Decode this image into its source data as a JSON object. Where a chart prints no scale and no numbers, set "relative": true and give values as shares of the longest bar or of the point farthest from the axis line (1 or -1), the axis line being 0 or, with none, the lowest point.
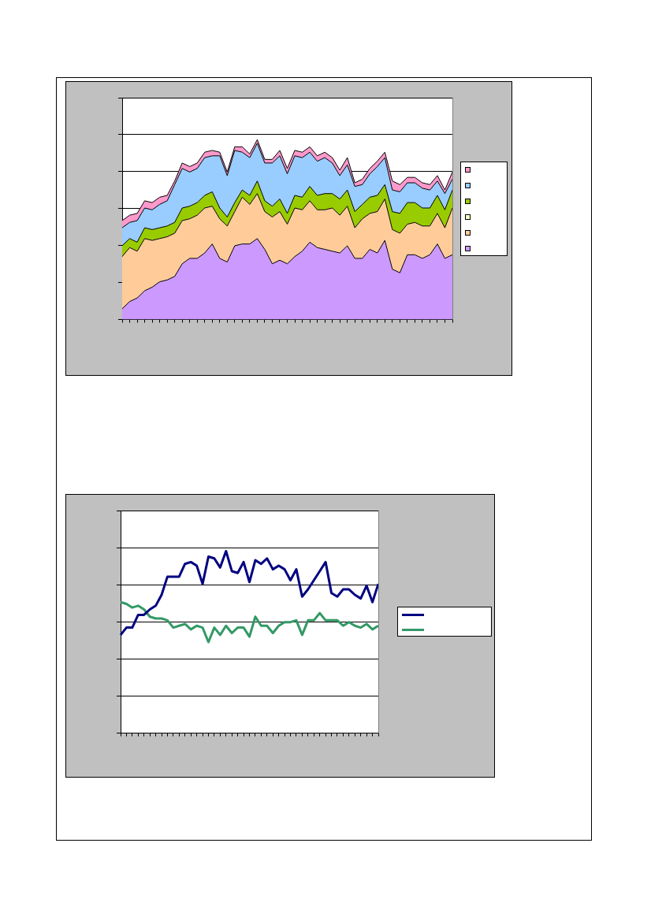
{
  "chart_data": [
    {
      "type": "area",
      "relative": true,
      "stacked": true,
      "grid": "y",
      "categories": [
        null,
        null,
        null,
        null,
        null,
        null,
        null,
        null,
        null,
        null,
        null,
        null,
        null,
        null,
        null,
        null,
        null,
        null,
        null,
        null,
        null,
        null,
        null,
        null,
        null,
        null,
        null,
        null,
        null,
        null,
        null,
        null,
        null,
        null,
        null,
        null,
        null,
        null,
        null,
        null,
        null,
        null,
        null,
        null,
        null
      ],
      "series": [
        {
          "color": "#cc99ff",
          "values": [
            0.06,
            0.1,
            0.12,
            0.16,
            0.18,
            0.21,
            0.22,
            0.24,
            0.31,
            0.34,
            0.34,
            0.37,
            0.42,
            0.34,
            0.32,
            0.41,
            0.42,
            0.42,
            0.45,
            0.39,
            0.31,
            0.33,
            0.31,
            0.35,
            0.38,
            0.43,
            0.4,
            0.39,
            0.38,
            0.37,
            0.41,
            0.34,
            0.34,
            0.39,
            0.37,
            0.44,
            0.28,
            0.26,
            0.36,
            0.36,
            0.34,
            0.36,
            0.42,
            0.34,
            0.36
          ]
        },
        {
          "color": "#ffcc99",
          "values": [
            0.29,
            0.3,
            0.26,
            0.29,
            0.26,
            0.24,
            0.24,
            0.24,
            0.24,
            0.22,
            0.24,
            0.25,
            0.21,
            0.22,
            0.2,
            0.19,
            0.26,
            0.22,
            0.25,
            0.21,
            0.26,
            0.27,
            0.22,
            0.27,
            0.23,
            0.23,
            0.21,
            0.22,
            0.24,
            0.21,
            0.22,
            0.17,
            0.22,
            0.2,
            0.23,
            0.23,
            0.22,
            0.22,
            0.17,
            0.18,
            0.18,
            0.16,
            0.17,
            0.17,
            0.26
          ]
        },
        {
          "color": "#ffffcc",
          "values": [
            null,
            null,
            null,
            null,
            null,
            null,
            null,
            null,
            null,
            null,
            null,
            null,
            null,
            null,
            null,
            null,
            null,
            null,
            null,
            null,
            null,
            null,
            null,
            null,
            null,
            null,
            null,
            null,
            null,
            null,
            null,
            null,
            null,
            null,
            null,
            null,
            null,
            null,
            null,
            null,
            null,
            null,
            null,
            null,
            null
          ]
        },
        {
          "color": "#99cc00",
          "values": [
            0.06,
            0.05,
            0.05,
            0.06,
            0.06,
            0.06,
            0.06,
            0.06,
            0.07,
            0.07,
            0.07,
            0.07,
            0.08,
            0.06,
            0.05,
            0.05,
            0.04,
            0.05,
            0.07,
            0.06,
            0.06,
            0.07,
            0.06,
            0.07,
            0.07,
            0.08,
            0.08,
            0.09,
            0.08,
            0.09,
            0.09,
            0.09,
            0.08,
            0.09,
            0.09,
            0.08,
            0.1,
            0.11,
            0.12,
            0.11,
            0.1,
            0.1,
            0.1,
            0.1,
            0.1
          ]
        },
        {
          "color": "#99ccff",
          "values": [
            0.1,
            0.09,
            0.12,
            0.11,
            0.11,
            0.13,
            0.14,
            0.21,
            0.22,
            0.19,
            0.19,
            0.21,
            0.2,
            0.29,
            0.23,
            0.29,
            0.21,
            0.21,
            0.21,
            0.21,
            0.24,
            0.24,
            0.22,
            0.22,
            0.22,
            0.19,
            0.19,
            0.2,
            0.17,
            0.13,
            0.14,
            0.14,
            0.11,
            0.13,
            0.16,
            0.15,
            0.12,
            0.12,
            0.11,
            0.11,
            0.11,
            0.1,
            0.08,
            0.09,
            0.06
          ]
        },
        {
          "color": "#ff99cc",
          "values": [
            0.04,
            0.04,
            0.04,
            0.04,
            0.04,
            0.04,
            0.03,
            0.02,
            0.03,
            0.03,
            0.03,
            0.03,
            0.03,
            0.02,
            0.02,
            0.02,
            0.03,
            0.02,
            0.02,
            0.02,
            0.02,
            0.03,
            0.03,
            0.03,
            0.03,
            0.03,
            0.03,
            0.03,
            0.03,
            0.03,
            0.04,
            0.02,
            0.03,
            0.03,
            0.03,
            0.03,
            0.05,
            0.04,
            0.03,
            0.03,
            0.03,
            0.03,
            0.03,
            0.02,
            0.04
          ]
        }
      ]
    },
    {
      "type": "line",
      "relative": true,
      "grid": "y",
      "categories": [
        null,
        null,
        null,
        null,
        null,
        null,
        null,
        null,
        null,
        null,
        null,
        null,
        null,
        null,
        null,
        null,
        null,
        null,
        null,
        null,
        null,
        null,
        null,
        null,
        null,
        null,
        null,
        null,
        null,
        null,
        null,
        null,
        null,
        null,
        null,
        null,
        null,
        null,
        null,
        null,
        null,
        null,
        null,
        null,
        null
      ],
      "series": [
        {
          "color": "#000080",
          "values": [
            0.54,
            0.58,
            0.58,
            0.65,
            0.65,
            0.68,
            0.7,
            0.76,
            0.86,
            0.86,
            0.86,
            0.93,
            0.94,
            0.92,
            0.82,
            0.97,
            0.96,
            0.91,
            1,
            0.89,
            0.88,
            0.94,
            0.83,
            0.95,
            0.93,
            0.96,
            0.9,
            0.92,
            0.9,
            0.84,
            0.9,
            0.75,
            0.79,
            0.84,
            0.89,
            0.94,
            0.77,
            0.75,
            0.79,
            0.79,
            0.76,
            0.74,
            0.81,
            0.72,
            0.82
          ]
        },
        {
          "color": "#339966",
          "values": [
            0.72,
            0.71,
            0.69,
            0.7,
            0.68,
            0.64,
            0.63,
            0.63,
            0.62,
            0.58,
            0.59,
            0.6,
            0.57,
            0.59,
            0.58,
            0.5,
            0.58,
            0.54,
            0.59,
            0.55,
            0.58,
            0.58,
            0.53,
            0.64,
            0.59,
            0.59,
            0.55,
            0.59,
            0.61,
            0.61,
            0.62,
            0.54,
            0.62,
            0.62,
            0.66,
            0.62,
            0.62,
            0.62,
            0.59,
            0.61,
            0.59,
            0.58,
            0.6,
            0.57,
            0.59
          ]
        }
      ]
    }
  ]
}
